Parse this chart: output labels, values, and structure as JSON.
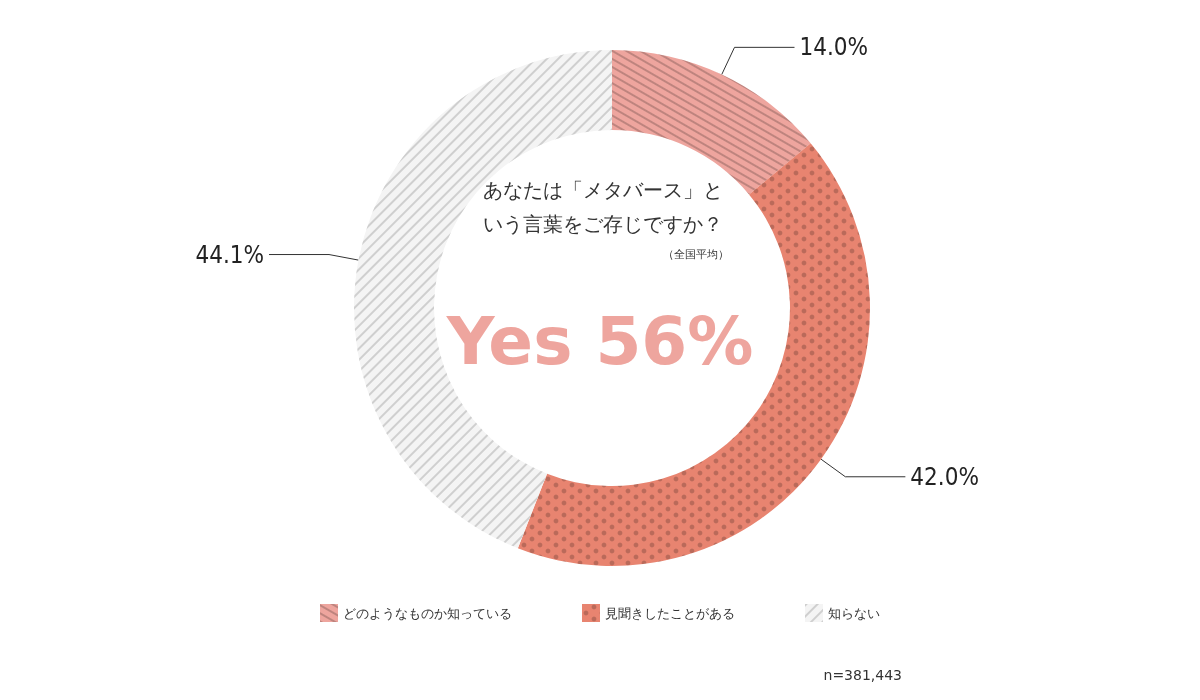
{
  "chart_data": {
    "type": "donut",
    "title": "あなたは「メタバース」という言葉をご存じですか？",
    "subtitle": "（全国平均）",
    "categories": [
      "どのようなものか知っている",
      "見聞きしたことがある",
      "知らない"
    ],
    "values": [
      14.0,
      42.0,
      44.1
    ],
    "colors": [
      "#eea59e",
      "#e88470",
      "#f4f4f4"
    ],
    "value_labels": [
      "14.0%",
      "42.0%",
      "44.1%"
    ],
    "legend": "bottom",
    "annotations": [
      "Yes 56%",
      "n=381,443"
    ]
  }
}
